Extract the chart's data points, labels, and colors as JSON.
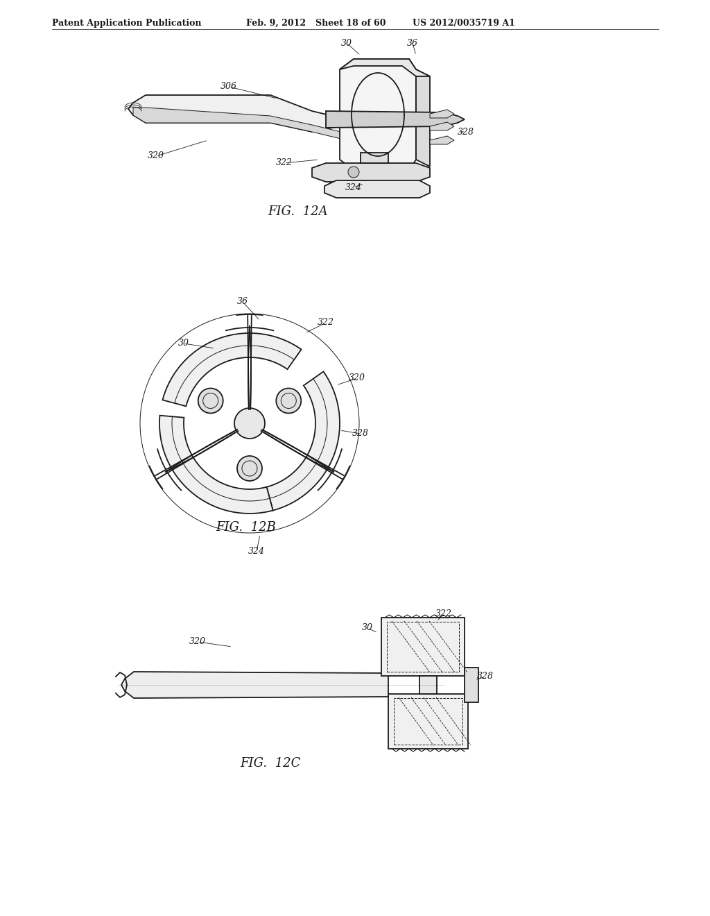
{
  "bg_color": "#ffffff",
  "header_text": "Patent Application Publication",
  "header_date": "Feb. 9, 2012",
  "header_sheet": "Sheet 18 of 60",
  "header_patent": "US 2012/0035719 A1",
  "fig12a_label": "FIG.  12A",
  "fig12b_label": "FIG.  12B",
  "fig12c_label": "FIG.  12C",
  "line_color": "#1a1a1a",
  "line_width": 1.3,
  "thin_line": 0.7,
  "font_size_header": 9,
  "font_size_label": 13,
  "font_size_ref": 9
}
